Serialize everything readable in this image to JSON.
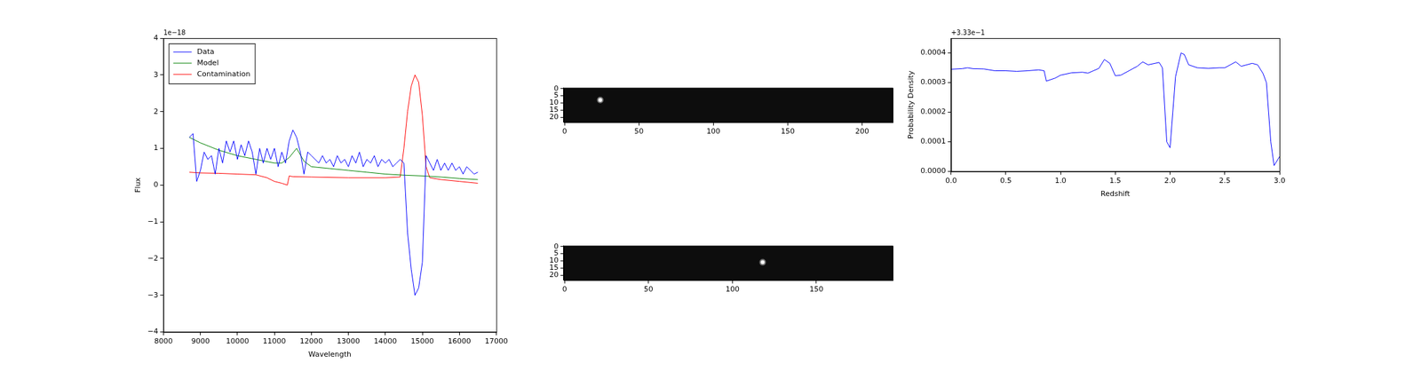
{
  "chart_data": [
    {
      "type": "line",
      "x_label": "Wavelength",
      "y_label": "Flux",
      "y_offset_label": "1e−18",
      "xlim": [
        8000,
        17000
      ],
      "xticks": [
        8000,
        9000,
        10000,
        11000,
        12000,
        13000,
        14000,
        15000,
        16000,
        17000
      ],
      "ylim": [
        -4,
        4
      ],
      "yticks": [
        {
          "value": -4,
          "label": "−4"
        },
        {
          "value": -3,
          "label": "−3"
        },
        {
          "value": -2,
          "label": "−2"
        },
        {
          "value": -1,
          "label": "−1"
        },
        0,
        1,
        2,
        3,
        4
      ],
      "grid": false,
      "legend": "upper left",
      "series": [
        {
          "name": "Data",
          "color": "#0000ff",
          "x": [
            8700,
            8800,
            8900,
            9000,
            9100,
            9200,
            9300,
            9400,
            9500,
            9600,
            9700,
            9800,
            9900,
            10000,
            10100,
            10200,
            10300,
            10400,
            10500,
            10600,
            10700,
            10800,
            10900,
            11000,
            11100,
            11200,
            11300,
            11400,
            11500,
            11600,
            11700,
            11800,
            11900,
            12000,
            12100,
            12200,
            12300,
            12400,
            12500,
            12600,
            12700,
            12800,
            12900,
            13000,
            13100,
            13200,
            13300,
            13400,
            13500,
            13600,
            13700,
            13800,
            13900,
            14000,
            14100,
            14200,
            14300,
            14400,
            14500,
            14600,
            14700,
            14800,
            14900,
            15000,
            15100,
            15200,
            15300,
            15400,
            15500,
            15600,
            15700,
            15800,
            15900,
            16000,
            16100,
            16200,
            16300,
            16400,
            16500
          ],
          "values": [
            1.3,
            1.4,
            0.1,
            0.4,
            0.9,
            0.7,
            0.8,
            0.3,
            1.0,
            0.6,
            1.2,
            0.9,
            1.2,
            0.7,
            1.1,
            0.8,
            1.2,
            0.9,
            0.3,
            1.0,
            0.6,
            1.0,
            0.7,
            1.0,
            0.5,
            0.9,
            0.6,
            1.2,
            1.5,
            1.3,
            0.9,
            0.3,
            0.9,
            0.8,
            0.7,
            0.6,
            0.8,
            0.6,
            0.7,
            0.5,
            0.8,
            0.6,
            0.7,
            0.5,
            0.8,
            0.6,
            0.9,
            0.5,
            0.7,
            0.6,
            0.8,
            0.5,
            0.7,
            0.6,
            0.7,
            0.5,
            0.6,
            0.7,
            0.6,
            -1.3,
            -2.3,
            -3.0,
            -2.8,
            -2.1,
            0.8,
            0.6,
            0.4,
            0.7,
            0.4,
            0.6,
            0.4,
            0.6,
            0.4,
            0.5,
            0.3,
            0.5,
            0.4,
            0.3,
            0.35
          ]
        },
        {
          "name": "Model",
          "color": "#008000",
          "x": [
            8700,
            9000,
            9500,
            10000,
            10500,
            11000,
            11200,
            11400,
            11600,
            11800,
            12000,
            12500,
            13000,
            13500,
            14000,
            14500,
            15000,
            15500,
            16000,
            16500
          ],
          "values": [
            1.3,
            1.15,
            0.95,
            0.8,
            0.7,
            0.6,
            0.6,
            0.75,
            1.0,
            0.65,
            0.5,
            0.45,
            0.4,
            0.35,
            0.3,
            0.27,
            0.25,
            0.22,
            0.18,
            0.15
          ]
        },
        {
          "name": "Contamination",
          "color": "#ff0000",
          "x": [
            8700,
            9000,
            9500,
            10000,
            10500,
            10800,
            11000,
            11200,
            11350,
            11400,
            11500,
            12000,
            13000,
            14000,
            14400,
            14500,
            14600,
            14700,
            14800,
            14900,
            15000,
            15100,
            15200,
            15500,
            16000,
            16500
          ],
          "values": [
            0.35,
            0.33,
            0.32,
            0.3,
            0.28,
            0.2,
            0.1,
            0.05,
            0.0,
            0.25,
            0.23,
            0.22,
            0.2,
            0.2,
            0.22,
            1.0,
            2.0,
            2.7,
            3.0,
            2.8,
            1.9,
            0.5,
            0.2,
            0.15,
            0.1,
            0.05
          ]
        }
      ]
    },
    {
      "type": "image",
      "xlim": [
        -0.5,
        220.5
      ],
      "ylim": [
        23.5,
        -0.5
      ],
      "xticks": [
        0,
        50,
        100,
        150,
        200
      ],
      "yticks": [
        0,
        5,
        10,
        15,
        20
      ],
      "grid": false,
      "sources": [
        {
          "x": 24,
          "y": 8
        }
      ]
    },
    {
      "type": "image",
      "xlim": [
        -0.5,
        195.5
      ],
      "ylim": [
        23.5,
        -0.5
      ],
      "xticks": [
        0,
        50,
        100,
        150
      ],
      "yticks": [
        0,
        5,
        10,
        15,
        20
      ],
      "grid": false,
      "sources": [
        {
          "x": 118,
          "y": 11
        }
      ]
    },
    {
      "type": "line",
      "x_label": "Redshift",
      "y_label": "Probability Density",
      "y_offset_label": "+3.33e−1",
      "xlim": [
        0,
        3
      ],
      "xticks": [
        {
          "value": 0,
          "label": "0.0"
        },
        {
          "value": 0.5,
          "label": "0.5"
        },
        {
          "value": 1,
          "label": "1.0"
        },
        {
          "value": 1.5,
          "label": "1.5"
        },
        {
          "value": 2,
          "label": "2.0"
        },
        {
          "value": 2.5,
          "label": "2.5"
        },
        {
          "value": 3,
          "label": "3.0"
        }
      ],
      "ylim": [
        0,
        0.00045
      ],
      "yticks": [
        {
          "value": 0,
          "label": "0.0000"
        },
        {
          "value": 0.0001,
          "label": "0.0001"
        },
        {
          "value": 0.0002,
          "label": "0.0002"
        },
        {
          "value": 0.0003,
          "label": "0.0003"
        },
        {
          "value": 0.0004,
          "label": "0.0004"
        }
      ],
      "grid": false,
      "color": "#0000ff",
      "x": [
        0.0,
        0.1,
        0.15,
        0.2,
        0.3,
        0.4,
        0.5,
        0.6,
        0.7,
        0.8,
        0.85,
        0.87,
        0.95,
        1.0,
        1.1,
        1.2,
        1.25,
        1.3,
        1.35,
        1.4,
        1.45,
        1.5,
        1.55,
        1.6,
        1.7,
        1.75,
        1.8,
        1.9,
        1.93,
        1.97,
        2.0,
        2.05,
        2.1,
        2.13,
        2.17,
        2.25,
        2.35,
        2.45,
        2.5,
        2.55,
        2.6,
        2.65,
        2.7,
        2.75,
        2.8,
        2.85,
        2.88,
        2.92,
        2.95,
        3.0
      ],
      "values": [
        0.000345,
        0.000347,
        0.00035,
        0.000347,
        0.000346,
        0.00034,
        0.00034,
        0.000338,
        0.00034,
        0.000343,
        0.00034,
        0.000305,
        0.000315,
        0.000325,
        0.000333,
        0.000335,
        0.000332,
        0.00034,
        0.000348,
        0.000378,
        0.000365,
        0.000323,
        0.000325,
        0.000335,
        0.000355,
        0.00037,
        0.00036,
        0.000368,
        0.00035,
        0.0001,
        8e-05,
        0.00032,
        0.0004,
        0.000395,
        0.00036,
        0.00035,
        0.000348,
        0.00035,
        0.00035,
        0.00036,
        0.00037,
        0.000355,
        0.00036,
        0.000365,
        0.00036,
        0.00033,
        0.0003,
        0.0001,
        2e-05,
        5e-05
      ]
    }
  ]
}
